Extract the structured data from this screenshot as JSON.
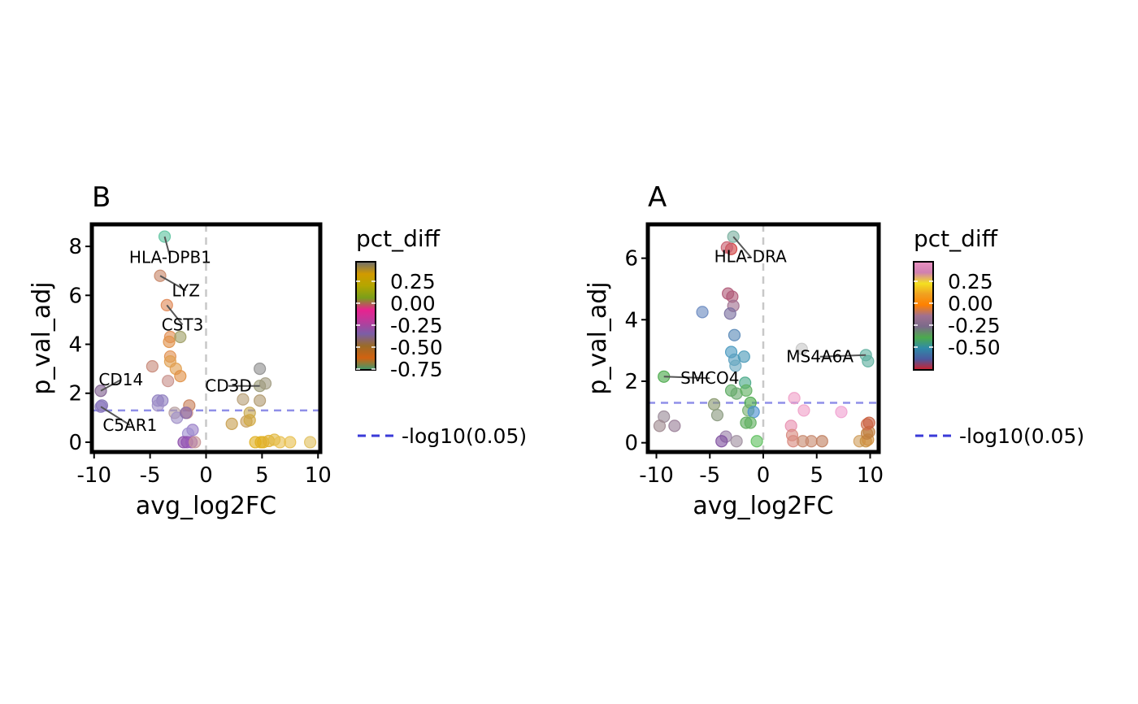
{
  "chart_data": [
    {
      "type": "scatter",
      "title": "B",
      "xlabel": "avg_log2FC",
      "ylabel": "p_val_adj",
      "xlim": [
        -10.2,
        10.2
      ],
      "ylim": [
        -0.4,
        8.9
      ],
      "xticks": [
        -10,
        -5,
        0,
        5,
        10
      ],
      "xtick_labels": [
        "-10",
        "-5",
        "0",
        "5",
        "10"
      ],
      "yticks": [
        0,
        2,
        4,
        6,
        8
      ],
      "ytick_labels": [
        "0",
        "2",
        "4",
        "6",
        "8"
      ],
      "threshold": {
        "y": 1.3,
        "legend_label": "-log10(0.05)",
        "color": "#8f8fe8"
      },
      "zero_line": {
        "x": 0,
        "color": "#c8c8c8"
      },
      "legend": {
        "title": "pct_diff",
        "labels": [
          "0.25",
          "0.00",
          "-0.25",
          "-0.50",
          "-0.75"
        ],
        "gradient": [
          "#6f6f6f",
          "#d19a00",
          "#b4a600",
          "#7a9f1a",
          "#e8228f",
          "#b83c9c",
          "#7b5ea7",
          "#9a6b28",
          "#d26210",
          "#3b9a6e"
        ]
      },
      "points": [
        {
          "x": -3.7,
          "y": 8.4,
          "color": "#5ec4a0"
        },
        {
          "x": -4.1,
          "y": 6.8,
          "color": "#c8886a"
        },
        {
          "x": -3.5,
          "y": 5.6,
          "color": "#e08a58"
        },
        {
          "x": -3.2,
          "y": 4.3,
          "color": "#e29055"
        },
        {
          "x": -2.3,
          "y": 4.3,
          "color": "#a0a068"
        },
        {
          "x": -3.3,
          "y": 4.1,
          "color": "#e0924a"
        },
        {
          "x": -3.2,
          "y": 3.5,
          "color": "#e09050"
        },
        {
          "x": -3.2,
          "y": 3.3,
          "color": "#e0a050"
        },
        {
          "x": -4.8,
          "y": 3.1,
          "color": "#c88a7a"
        },
        {
          "x": -2.7,
          "y": 3.0,
          "color": "#e2a050"
        },
        {
          "x": -2.3,
          "y": 2.7,
          "color": "#e09045"
        },
        {
          "x": -3.4,
          "y": 2.5,
          "color": "#c8908a"
        },
        {
          "x": -9.4,
          "y": 2.1,
          "color": "#806090"
        },
        {
          "x": -3.9,
          "y": 1.7,
          "color": "#9080c0"
        },
        {
          "x": -4.3,
          "y": 1.7,
          "color": "#9080c0"
        },
        {
          "x": -9.3,
          "y": 1.5,
          "color": "#8070b0"
        },
        {
          "x": -9.4,
          "y": 1.45,
          "color": "#8a78c0"
        },
        {
          "x": -4.3,
          "y": 1.5,
          "color": "#a090c8"
        },
        {
          "x": -1.5,
          "y": 1.5,
          "color": "#c8805a"
        },
        {
          "x": -1.7,
          "y": 1.2,
          "color": "#c8908a"
        },
        {
          "x": -2.8,
          "y": 1.2,
          "color": "#b8a0a0"
        },
        {
          "x": -2.6,
          "y": 1.0,
          "color": "#a090c8"
        },
        {
          "x": -1.8,
          "y": 1.2,
          "color": "#8a6aa8"
        },
        {
          "x": -1.2,
          "y": 0.5,
          "color": "#9a80c8"
        },
        {
          "x": -1.6,
          "y": 0.35,
          "color": "#a090d0"
        },
        {
          "x": -2.0,
          "y": 0.0,
          "color": "#8a4aa8"
        },
        {
          "x": -1.7,
          "y": 0.0,
          "color": "#9050b0"
        },
        {
          "x": -1.3,
          "y": 0.0,
          "color": "#9a5ab8"
        },
        {
          "x": -1.0,
          "y": 0.0,
          "color": "#c89898"
        },
        {
          "x": 4.8,
          "y": 3.0,
          "color": "#909090"
        },
        {
          "x": 4.8,
          "y": 2.3,
          "color": "#9a9a78"
        },
        {
          "x": 5.3,
          "y": 2.4,
          "color": "#a09a80"
        },
        {
          "x": 3.3,
          "y": 1.75,
          "color": "#b8a078"
        },
        {
          "x": 4.8,
          "y": 1.7,
          "color": "#b09a70"
        },
        {
          "x": 3.9,
          "y": 1.2,
          "color": "#c8a850"
        },
        {
          "x": 2.3,
          "y": 0.75,
          "color": "#c8a050"
        },
        {
          "x": 3.6,
          "y": 0.85,
          "color": "#c8a060"
        },
        {
          "x": 3.9,
          "y": 0.9,
          "color": "#d0a840"
        },
        {
          "x": 4.4,
          "y": 0.0,
          "color": "#e0b020"
        },
        {
          "x": 4.9,
          "y": 0.0,
          "color": "#e0b020"
        },
        {
          "x": 5.1,
          "y": 0.0,
          "color": "#e0b020"
        },
        {
          "x": 5.6,
          "y": 0.05,
          "color": "#e0b030"
        },
        {
          "x": 6.1,
          "y": 0.1,
          "color": "#e0b840"
        },
        {
          "x": 6.6,
          "y": 0.0,
          "color": "#e8c050"
        },
        {
          "x": 7.5,
          "y": 0.0,
          "color": "#e8c050"
        },
        {
          "x": 9.3,
          "y": 0.0,
          "color": "#e0c060"
        }
      ],
      "labels": [
        {
          "text": "HLA-DPB1",
          "x": -3.7,
          "y": 8.4,
          "lx": -3.2,
          "ly": 7.55
        },
        {
          "text": "LYZ",
          "x": -4.1,
          "y": 6.8,
          "lx": -1.8,
          "ly": 6.2
        },
        {
          "text": "CST3",
          "x": -3.5,
          "y": 5.6,
          "lx": -2.1,
          "ly": 4.8
        },
        {
          "text": "CD14",
          "x": -9.4,
          "y": 2.1,
          "lx": -7.6,
          "ly": 2.55
        },
        {
          "text": "C5AR1",
          "x": -9.4,
          "y": 1.45,
          "lx": -6.8,
          "ly": 0.7
        },
        {
          "text": "CD3D",
          "x": 4.8,
          "y": 2.3,
          "lx": 2.0,
          "ly": 2.3
        }
      ]
    },
    {
      "type": "scatter",
      "title": "A",
      "xlabel": "avg_log2FC",
      "ylabel": "p_val_adj",
      "xlim": [
        -10.8,
        10.8
      ],
      "ylim": [
        -0.3,
        7.1
      ],
      "xticks": [
        -10,
        -5,
        0,
        5,
        10
      ],
      "xtick_labels": [
        "-10",
        "-5",
        "0",
        "5",
        "10"
      ],
      "yticks": [
        0,
        2,
        4,
        6
      ],
      "ytick_labels": [
        "0",
        "2",
        "4",
        "6"
      ],
      "threshold": {
        "y": 1.3,
        "legend_label": "-log10(0.05)",
        "color": "#8f8fe8"
      },
      "zero_line": {
        "x": 0,
        "color": "#c8c8c8"
      },
      "legend": {
        "title": "pct_diff",
        "labels": [
          "0.25",
          "0.00",
          "-0.25",
          "-0.50"
        ],
        "gradient": [
          "#e890c0",
          "#d080b0",
          "#f4e020",
          "#f0a020",
          "#ff8000",
          "#a07090",
          "#7a6a8a",
          "#4caa4c",
          "#2f8aa8",
          "#4a5aa0",
          "#d0202a"
        ]
      },
      "points": [
        {
          "x": -2.8,
          "y": 6.7,
          "color": "#7ab0a0"
        },
        {
          "x": -3.0,
          "y": 6.3,
          "color": "#d04040"
        },
        {
          "x": -3.4,
          "y": 6.35,
          "color": "#c86070"
        },
        {
          "x": -3.3,
          "y": 4.85,
          "color": "#b05a78"
        },
        {
          "x": -2.9,
          "y": 4.75,
          "color": "#b05a78"
        },
        {
          "x": -2.8,
          "y": 4.45,
          "color": "#a07090"
        },
        {
          "x": -3.1,
          "y": 4.2,
          "color": "#7a70a0"
        },
        {
          "x": -5.7,
          "y": 4.25,
          "color": "#6a8ac0"
        },
        {
          "x": -2.7,
          "y": 3.5,
          "color": "#5a8ab8"
        },
        {
          "x": -3.0,
          "y": 2.95,
          "color": "#4a9ac0"
        },
        {
          "x": -2.7,
          "y": 2.7,
          "color": "#5aa0c0"
        },
        {
          "x": -1.8,
          "y": 2.8,
          "color": "#4a9ab8"
        },
        {
          "x": -2.6,
          "y": 2.5,
          "color": "#6aa8c0"
        },
        {
          "x": -1.7,
          "y": 1.95,
          "color": "#4aaa8a"
        },
        {
          "x": -3.0,
          "y": 1.7,
          "color": "#5aaa60"
        },
        {
          "x": -2.5,
          "y": 1.6,
          "color": "#6aaa70"
        },
        {
          "x": -1.6,
          "y": 1.7,
          "color": "#60b060"
        },
        {
          "x": -1.2,
          "y": 1.3,
          "color": "#4aaa4a"
        },
        {
          "x": -1.4,
          "y": 1.05,
          "color": "#7ab070"
        },
        {
          "x": -0.9,
          "y": 1.0,
          "color": "#4a90d0"
        },
        {
          "x": -4.6,
          "y": 1.25,
          "color": "#8a9a70"
        },
        {
          "x": -4.3,
          "y": 0.9,
          "color": "#8a9a80"
        },
        {
          "x": -1.6,
          "y": 0.65,
          "color": "#5aaa5a"
        },
        {
          "x": -1.2,
          "y": 0.65,
          "color": "#60b060"
        },
        {
          "x": -9.3,
          "y": 2.15,
          "color": "#4aaa4a"
        },
        {
          "x": -9.3,
          "y": 0.85,
          "color": "#9a8a98"
        },
        {
          "x": -9.7,
          "y": 0.55,
          "color": "#a08a90"
        },
        {
          "x": -8.3,
          "y": 0.55,
          "color": "#9a8098"
        },
        {
          "x": -3.5,
          "y": 0.2,
          "color": "#9a80a8"
        },
        {
          "x": -3.9,
          "y": 0.05,
          "color": "#8050a0"
        },
        {
          "x": -2.5,
          "y": 0.05,
          "color": "#a090a0"
        },
        {
          "x": -0.6,
          "y": 0.05,
          "color": "#60c060"
        },
        {
          "x": 3.6,
          "y": 3.05,
          "color": "#c8c8c8"
        },
        {
          "x": 9.6,
          "y": 2.85,
          "color": "#60b0a0"
        },
        {
          "x": 9.8,
          "y": 2.65,
          "color": "#60b0a0"
        },
        {
          "x": 2.9,
          "y": 1.45,
          "color": "#f0a0c8"
        },
        {
          "x": 3.8,
          "y": 1.05,
          "color": "#f0a0c8"
        },
        {
          "x": 7.3,
          "y": 1.0,
          "color": "#f0a0d0"
        },
        {
          "x": 2.6,
          "y": 0.55,
          "color": "#e890b0"
        },
        {
          "x": 2.7,
          "y": 0.25,
          "color": "#d88a80"
        },
        {
          "x": 2.8,
          "y": 0.05,
          "color": "#d88a80"
        },
        {
          "x": 3.7,
          "y": 0.05,
          "color": "#c88a70"
        },
        {
          "x": 4.5,
          "y": 0.05,
          "color": "#c88a70"
        },
        {
          "x": 5.5,
          "y": 0.05,
          "color": "#c08060"
        },
        {
          "x": 9.0,
          "y": 0.05,
          "color": "#d0a060"
        },
        {
          "x": 9.6,
          "y": 0.05,
          "color": "#c89040"
        },
        {
          "x": 9.8,
          "y": 0.1,
          "color": "#d09040"
        },
        {
          "x": 9.7,
          "y": 0.3,
          "color": "#c08040"
        },
        {
          "x": 9.9,
          "y": 0.35,
          "color": "#c08040"
        },
        {
          "x": 9.7,
          "y": 0.6,
          "color": "#d07050"
        },
        {
          "x": 9.9,
          "y": 0.65,
          "color": "#c86040"
        }
      ],
      "labels": [
        {
          "text": "HLA-DRA",
          "x": -2.8,
          "y": 6.7,
          "lx": -1.2,
          "ly": 6.05
        },
        {
          "text": "SMCO4",
          "x": -9.3,
          "y": 2.15,
          "lx": -5.0,
          "ly": 2.1
        },
        {
          "text": "MS4A6A",
          "x": 9.6,
          "y": 2.85,
          "lx": 5.3,
          "ly": 2.8
        }
      ]
    }
  ]
}
